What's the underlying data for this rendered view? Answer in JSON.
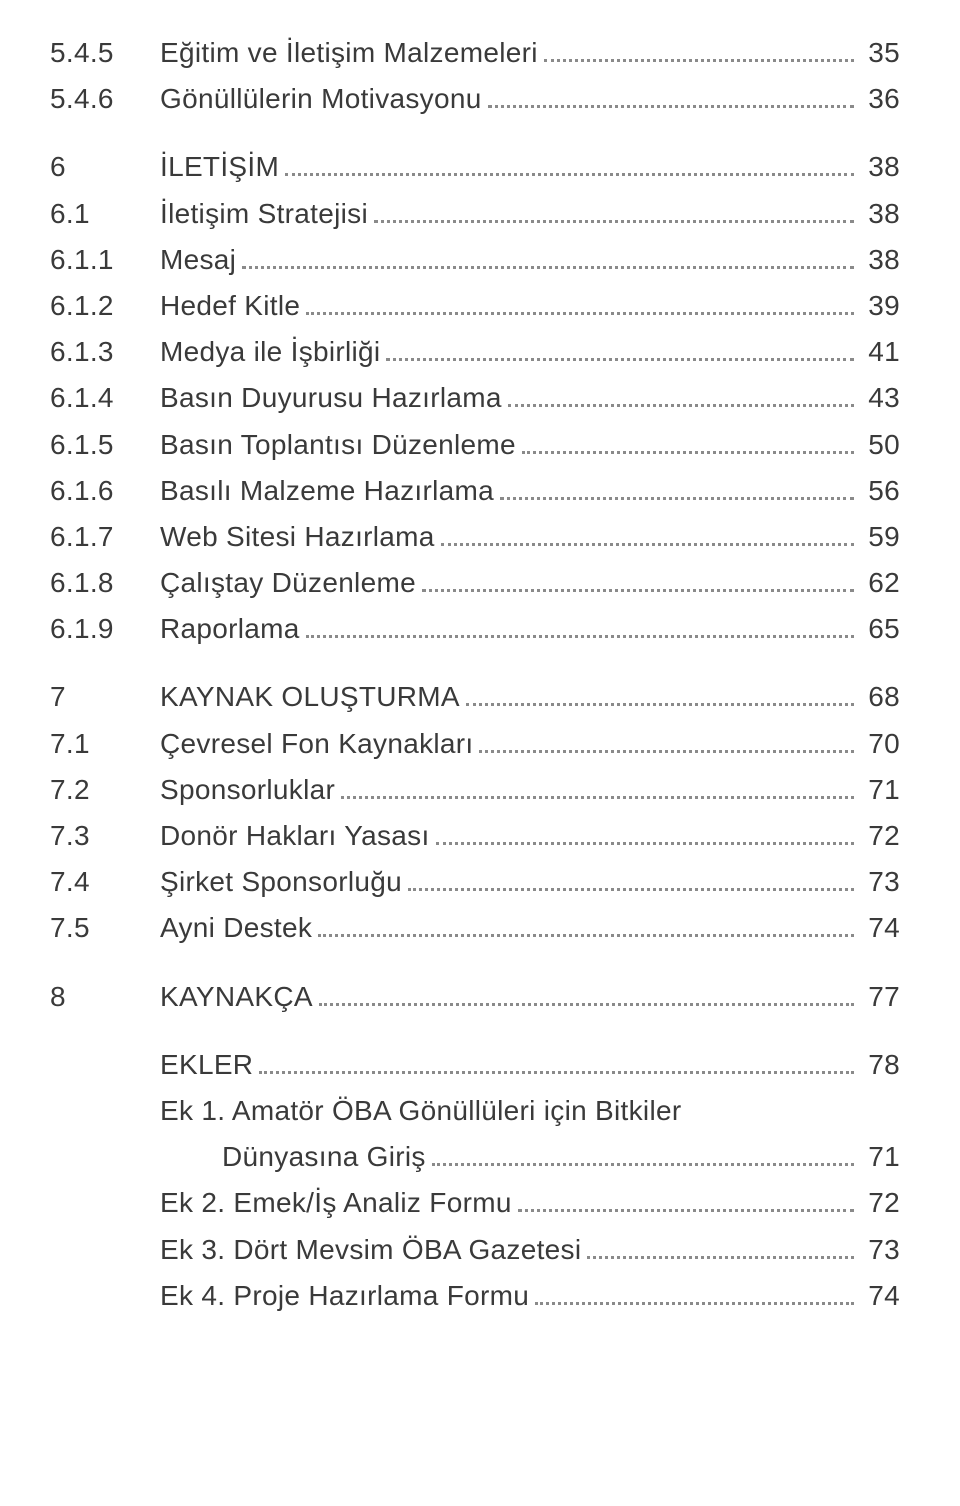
{
  "text_color": "#3a3a3a",
  "background_color": "#ffffff",
  "dot_color": "#8a8a8a",
  "font_size": 28,
  "num_col_width": 110,
  "line_height": 1.65,
  "groups": [
    {
      "entries": [
        {
          "num": "5.4.5",
          "title": "Eğitim ve İletişim Malzemeleri",
          "page": "35"
        },
        {
          "num": "5.4.6",
          "title": "Gönüllülerin Motivasyonu",
          "page": "36"
        }
      ]
    },
    {
      "entries": [
        {
          "num": "6",
          "title": "İLETİŞİM",
          "page": "38"
        },
        {
          "num": "6.1",
          "title": "İletişim Stratejisi",
          "page": "38"
        },
        {
          "num": "6.1.1",
          "title": "Mesaj",
          "page": "38"
        },
        {
          "num": "6.1.2",
          "title": "Hedef Kitle",
          "page": "39"
        },
        {
          "num": "6.1.3",
          "title": "Medya ile İşbirliği",
          "page": "41"
        },
        {
          "num": "6.1.4",
          "title": "Basın Duyurusu Hazırlama",
          "page": "43"
        },
        {
          "num": "6.1.5",
          "title": "Basın Toplantısı Düzenleme",
          "page": "50"
        },
        {
          "num": "6.1.6",
          "title": "Basılı Malzeme Hazırlama",
          "page": "56"
        },
        {
          "num": "6.1.7",
          "title": "Web Sitesi Hazırlama",
          "page": "59"
        },
        {
          "num": "6.1.8",
          "title": "Çalıştay Düzenleme",
          "page": "62"
        },
        {
          "num": "6.1.9",
          "title": "Raporlama",
          "page": "65"
        }
      ]
    },
    {
      "entries": [
        {
          "num": "7",
          "title": "KAYNAK OLUŞTURMA",
          "page": "68"
        },
        {
          "num": "7.1",
          "title": "Çevresel Fon Kaynakları",
          "page": "70"
        },
        {
          "num": "7.2",
          "title": "Sponsorluklar",
          "page": "71"
        },
        {
          "num": "7.3",
          "title": "Donör Hakları Yasası",
          "page": "72"
        },
        {
          "num": "7.4",
          "title": "Şirket Sponsorluğu",
          "page": "73"
        },
        {
          "num": "7.5",
          "title": "Ayni Destek",
          "page": "74"
        }
      ]
    },
    {
      "entries": [
        {
          "num": "8",
          "title": "KAYNAKÇA",
          "page": "77"
        }
      ]
    },
    {
      "entries": [
        {
          "num": "",
          "title": "EKLER",
          "page": "78"
        },
        {
          "num": "",
          "title": "Ek 1. Amatör ÖBA Gönüllüleri için Bitkiler",
          "page": "",
          "nodots": true
        },
        {
          "num": "",
          "title": "Dünyasına Giriş",
          "page": "71",
          "indent": true
        },
        {
          "num": "",
          "title": "Ek 2. Emek/İş Analiz Formu",
          "page": "72"
        },
        {
          "num": "",
          "title": "Ek 3. Dört Mevsim ÖBA Gazetesi",
          "page": "73"
        },
        {
          "num": "",
          "title": "Ek 4. Proje Hazırlama Formu",
          "page": "74"
        }
      ]
    }
  ]
}
